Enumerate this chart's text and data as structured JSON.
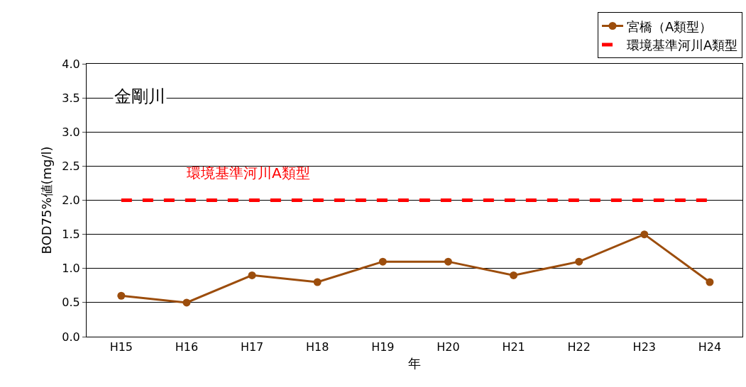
{
  "chart_data": {
    "type": "line",
    "title": "金剛川",
    "xlabel": "年",
    "ylabel": "BOD75%値(mg/l)",
    "categories": [
      "H15",
      "H16",
      "H17",
      "H18",
      "H19",
      "H20",
      "H21",
      "H22",
      "H23",
      "H24"
    ],
    "series": [
      {
        "name": "宮橋（A類型）",
        "color": "#9c4d0c",
        "marker": "circle",
        "line_style": "solid",
        "values": [
          0.6,
          0.5,
          0.9,
          0.8,
          1.1,
          1.1,
          0.9,
          1.1,
          1.5,
          0.8
        ]
      },
      {
        "name": "環境基準河川A類型",
        "color": "#ff0000",
        "marker": "none",
        "line_style": "dashed",
        "values": [
          2.0,
          2.0,
          2.0,
          2.0,
          2.0,
          2.0,
          2.0,
          2.0,
          2.0,
          2.0
        ]
      }
    ],
    "annotations": [
      "環境基準河川A類型"
    ],
    "ylim": [
      0,
      4
    ],
    "yticks": [
      {
        "value": 0,
        "label": "0.0"
      },
      {
        "value": 0.5,
        "label": "0.5"
      },
      {
        "value": 1,
        "label": "1.0"
      },
      {
        "value": 1.5,
        "label": "1.5"
      },
      {
        "value": 2,
        "label": "2.0"
      },
      {
        "value": 2.5,
        "label": "2.5"
      },
      {
        "value": 3,
        "label": "3.0"
      },
      {
        "value": 3.5,
        "label": "3.5"
      },
      {
        "value": 4,
        "label": "4.0"
      }
    ],
    "grid": "y",
    "legend": "top right"
  }
}
